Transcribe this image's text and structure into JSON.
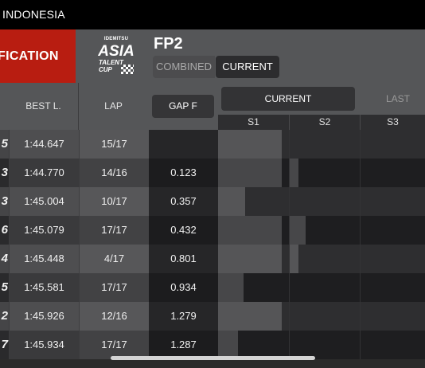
{
  "topbar": {
    "event": "INDONESIA"
  },
  "header": {
    "section_title": "FICATION",
    "logo": {
      "line1": "IDEMITSU",
      "line2": "ASIA",
      "line3": "TALENT",
      "line4": "CUP"
    },
    "session": "FP2",
    "segments": {
      "combined": "COMBINED",
      "current": "CURRENT"
    }
  },
  "columns": {
    "best_lap": "BEST L.",
    "lap": "LAP",
    "gap": "GAP F"
  },
  "timing_tabs": {
    "current": "CURRENT",
    "last": "LAST"
  },
  "sectors": [
    "S1",
    "S2",
    "S3"
  ],
  "rows": [
    {
      "pos_digit": "5",
      "best": "1:44.647",
      "lap": "15/17",
      "gap": "",
      "s1": 0.9,
      "s2": 0.0,
      "s3": 0.0
    },
    {
      "pos_digit": "3",
      "best": "1:44.770",
      "lap": "14/16",
      "gap": "0.123",
      "s1": 0.9,
      "s2": 0.12,
      "s3": 0.0
    },
    {
      "pos_digit": "3",
      "best": "1:45.004",
      "lap": "10/17",
      "gap": "0.357",
      "s1": 0.38,
      "s2": 0.0,
      "s3": 0.0
    },
    {
      "pos_digit": "6",
      "best": "1:45.079",
      "lap": "17/17",
      "gap": "0.432",
      "s1": 0.9,
      "s2": 0.22,
      "s3": 0.0
    },
    {
      "pos_digit": "4",
      "best": "1:45.448",
      "lap": "4/17",
      "gap": "0.801",
      "s1": 0.9,
      "s2": 0.12,
      "s3": 0.0
    },
    {
      "pos_digit": "5",
      "best": "1:45.581",
      "lap": "17/17",
      "gap": "0.934",
      "s1": 0.36,
      "s2": 0.0,
      "s3": 0.0
    },
    {
      "pos_digit": "2",
      "best": "1:45.926",
      "lap": "12/16",
      "gap": "1.279",
      "s1": 0.9,
      "s2": 0.0,
      "s3": 0.0
    },
    {
      "pos_digit": "7",
      "best": "1:45.934",
      "lap": "17/17",
      "gap": "1.287",
      "s1": 0.28,
      "s2": 0.0,
      "s3": 0.0
    }
  ],
  "colors": {
    "accent_red": "#b81d11",
    "panel": "#555658",
    "row_dark": "#1f1f21",
    "row_light": "#424244"
  }
}
